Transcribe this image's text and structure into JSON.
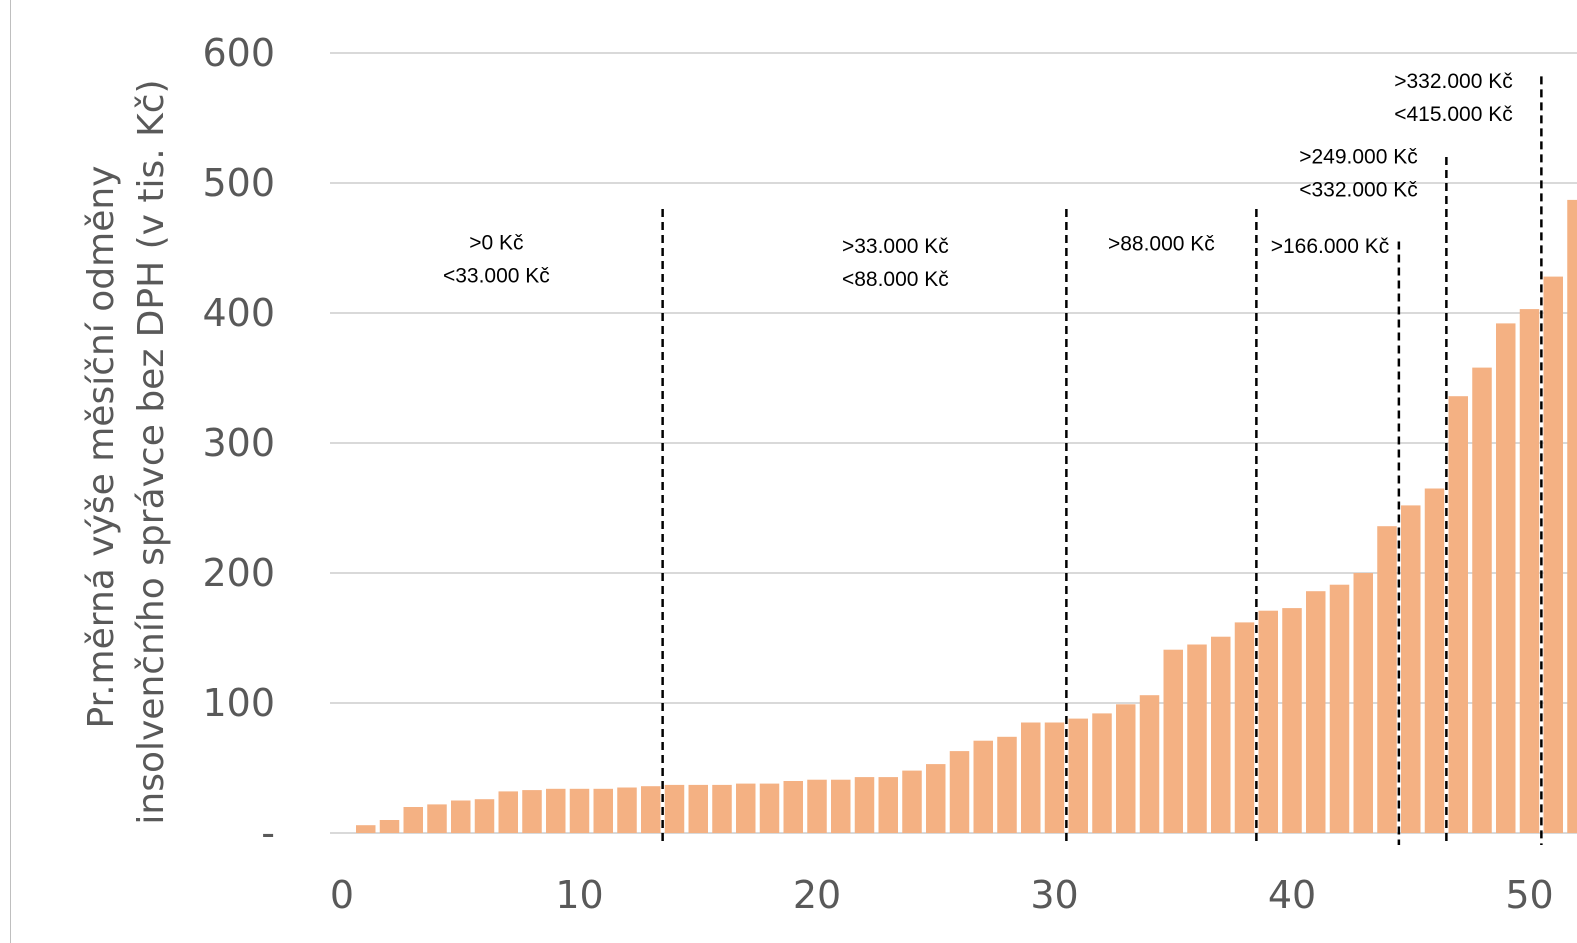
{
  "chart_data": {
    "type": "bar",
    "ylabel": [
      "Pr.měrná výše měsíční odměny",
      "insolvenčního správce bez DPH (v tis. Kč)"
    ],
    "xlabel": "",
    "x": [
      1,
      2,
      3,
      4,
      5,
      6,
      7,
      8,
      9,
      10,
      11,
      12,
      13,
      14,
      15,
      16,
      17,
      18,
      19,
      20,
      21,
      22,
      23,
      24,
      25,
      26,
      27,
      28,
      29,
      30,
      31,
      32,
      33,
      34,
      35,
      36,
      37,
      38,
      39,
      40,
      41,
      42,
      43,
      44,
      45,
      46,
      47,
      48,
      49,
      50,
      51,
      52
    ],
    "values": [
      6,
      10,
      20,
      22,
      25,
      26,
      32,
      33,
      34,
      34,
      34,
      35,
      36,
      37,
      37,
      37,
      38,
      38,
      40,
      41,
      41,
      43,
      43,
      48,
      53,
      63,
      71,
      74,
      85,
      85,
      88,
      92,
      99,
      106,
      141,
      145,
      151,
      162,
      171,
      173,
      186,
      191,
      200,
      236,
      252,
      265,
      336,
      358,
      392,
      403,
      428,
      487
    ],
    "ylim": [
      0,
      600
    ],
    "xlim": [
      0,
      52
    ],
    "yticks": [
      0,
      100,
      200,
      300,
      400,
      500,
      600
    ],
    "ytick_labels": [
      "-",
      "100",
      "200",
      "300",
      "400",
      "500",
      "600"
    ],
    "xticks": [
      0,
      10,
      20,
      30,
      40,
      50
    ],
    "xtick_labels": [
      "0",
      "10",
      "20",
      "30",
      "40",
      "50"
    ],
    "grid": true,
    "bar_color": "#F4B183",
    "gridline_color": "#d9d9d9",
    "dividers": [
      {
        "x": 13.5,
        "y_top": 480
      },
      {
        "x": 30.5,
        "y_top": 480
      },
      {
        "x": 38.5,
        "y_top": 480
      },
      {
        "x": 44.5,
        "y_top": 455
      },
      {
        "x": 46.5,
        "y_top": 520
      },
      {
        "x": 50.5,
        "y_top": 582
      }
    ],
    "annotations": [
      {
        "lines": [
          ">0 Kč",
          "<33.000 Kč"
        ],
        "x": 6.5,
        "y": 449
      },
      {
        "lines": [
          ">33.000 Kč",
          "<88.000 Kč"
        ],
        "x": 23.3,
        "y": 446
      },
      {
        "lines": [
          ">88.000 Kč"
        ],
        "x": 34.5,
        "y": 448
      },
      {
        "lines": [
          ">166.000 Kč"
        ],
        "x": 41.6,
        "y": 446
      },
      {
        "lines": [
          ">249.000 Kč",
          "<332.000 Kč"
        ],
        "x": 42.8,
        "y": 515
      },
      {
        "lines": [
          ">332.000 Kč",
          "<415.000 Kč"
        ],
        "x": 46.8,
        "y": 573
      }
    ]
  }
}
